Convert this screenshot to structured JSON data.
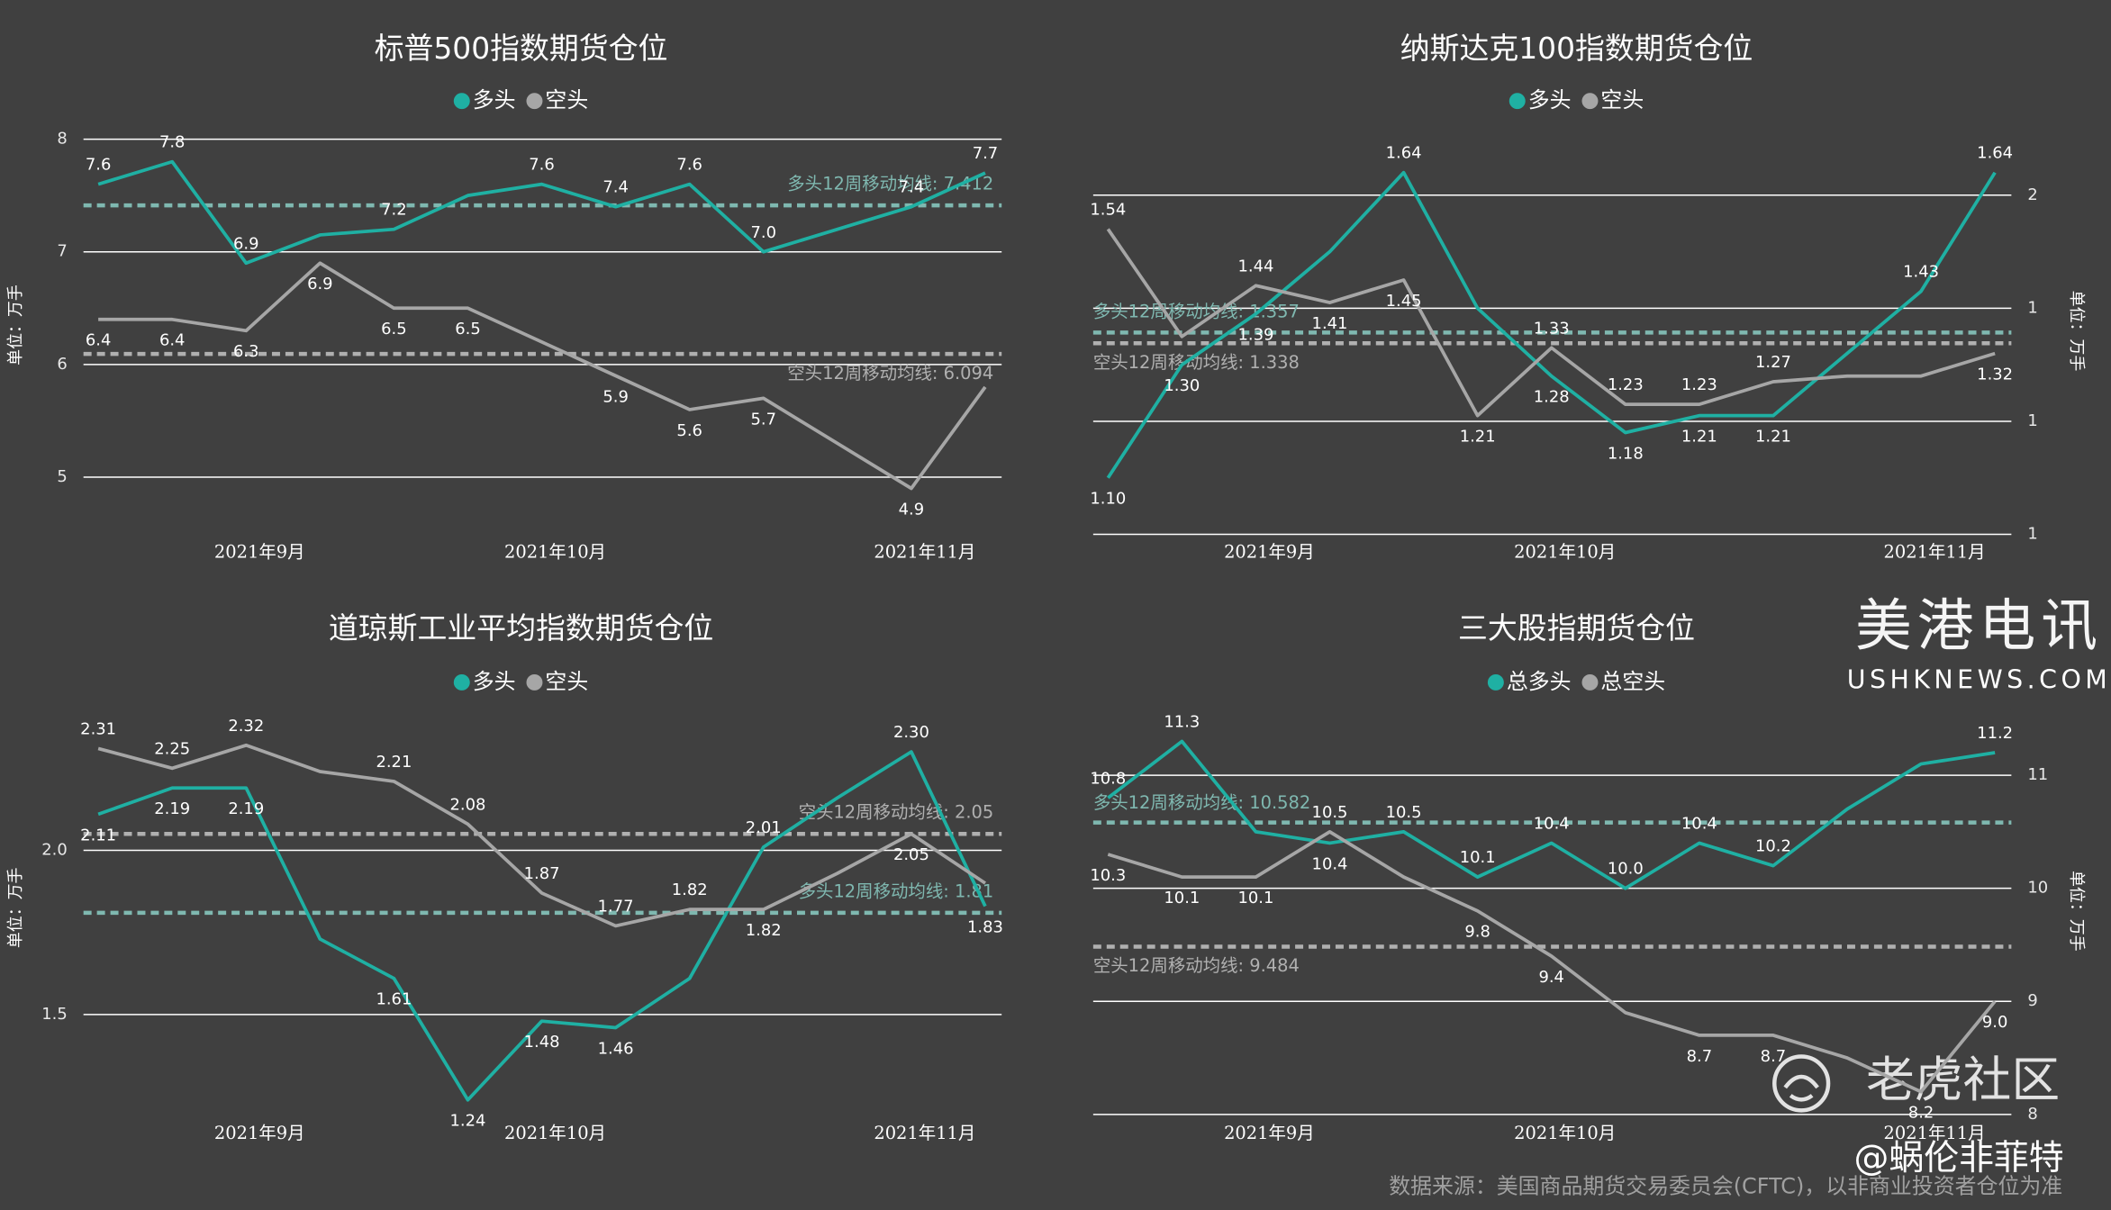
{
  "chart_data": [
    {
      "type": "line",
      "title": "标普500指数期货仓位",
      "y_axis_label": "单位：万手",
      "y_axis_side": "left",
      "grid": true,
      "legend": "top",
      "categories": [
        null,
        null,
        "2021年9月",
        null,
        null,
        null,
        "2021年10月",
        null,
        null,
        null,
        null,
        "2021年11月",
        null
      ],
      "ylim": [
        4.6,
        8.1
      ],
      "yticks": [
        5,
        6,
        7,
        8
      ],
      "series": [
        {
          "name": "多头",
          "color": "#1fb0a3",
          "values": [
            7.6,
            7.8,
            6.9,
            7.15,
            7.2,
            7.5,
            7.6,
            7.4,
            7.6,
            7.0,
            7.2,
            7.4,
            7.7
          ],
          "value_labels": [
            "7.6",
            "7.8",
            "6.9",
            null,
            "7.2",
            null,
            "7.6",
            "7.4",
            "7.6",
            "7.0",
            null,
            "7.4",
            "7.7"
          ]
        },
        {
          "name": "空头",
          "color": "#a6a6a6",
          "values": [
            6.4,
            6.4,
            6.3,
            6.9,
            6.5,
            6.5,
            6.2,
            5.9,
            5.6,
            5.7,
            5.3,
            4.9,
            5.8
          ],
          "value_labels": [
            "6.4",
            "6.4",
            "6.3",
            "6.9",
            "6.5",
            "6.5",
            null,
            "5.9",
            "5.6",
            "5.7",
            null,
            "4.9",
            null
          ]
        }
      ],
      "moving_averages": [
        {
          "label": "多头12周移动均线: 7.412",
          "value": 7.412,
          "color": "#7fb8b0"
        },
        {
          "label": "空头12周移动均线: 6.094",
          "value": 6.094,
          "color": "#b0b0b0"
        }
      ]
    },
    {
      "type": "line",
      "title": "纳斯达克100指数期货仓位",
      "y_axis_label": "单位：万手",
      "y_axis_side": "right",
      "grid": true,
      "legend": "top",
      "categories": [
        null,
        null,
        "2021年9月",
        null,
        null,
        null,
        "2021年10月",
        null,
        null,
        null,
        null,
        "2021年11月",
        null
      ],
      "ylim": [
        1.0,
        1.72
      ],
      "yticks": [
        1,
        {
          "value": 1.2,
          "label": "1"
        },
        {
          "value": 1.4,
          "label": "1"
        },
        {
          "value": 1.6,
          "label": "2"
        }
      ],
      "series": [
        {
          "name": "多头",
          "color": "#1fb0a3",
          "values": [
            1.1,
            1.3,
            1.39,
            1.5,
            1.64,
            1.4,
            1.28,
            1.18,
            1.21,
            1.21,
            1.32,
            1.43,
            1.64
          ],
          "value_labels": [
            "1.10",
            "1.30",
            "1.39",
            null,
            "1.64",
            null,
            "1.28",
            "1.18",
            "1.21",
            "1.21",
            null,
            "1.43",
            "1.64"
          ]
        },
        {
          "name": "空头",
          "color": "#a6a6a6",
          "values": [
            1.54,
            1.35,
            1.44,
            1.41,
            1.45,
            1.21,
            1.33,
            1.23,
            1.23,
            1.27,
            1.28,
            1.28,
            1.32
          ],
          "value_labels": [
            "1.54",
            null,
            "1.44",
            "1.41",
            "1.45",
            "1.21",
            "1.33",
            "1.23",
            "1.23",
            "1.27",
            null,
            null,
            "1.32"
          ]
        }
      ],
      "moving_averages": [
        {
          "label": "多头12周移动均线: 1.357",
          "value": 1.357,
          "color": "#7fb8b0"
        },
        {
          "label": "空头12周移动均线: 1.338",
          "value": 1.338,
          "color": "#b0b0b0"
        }
      ]
    },
    {
      "type": "line",
      "title": "道琼斯工业平均指数期货仓位",
      "y_axis_label": "单位：万手",
      "y_axis_side": "left",
      "grid": true,
      "legend": "top",
      "categories": [
        null,
        null,
        "2021年9月",
        null,
        null,
        null,
        "2021年10月",
        null,
        null,
        null,
        null,
        "2021年11月",
        null
      ],
      "ylim": [
        1.2,
        2.45
      ],
      "yticks": [
        1.5,
        {
          "value": 2,
          "label": "2.0"
        }
      ],
      "series": [
        {
          "name": "多头",
          "color": "#1fb0a3",
          "values": [
            2.11,
            2.19,
            2.19,
            1.73,
            1.61,
            1.24,
            1.48,
            1.46,
            1.61,
            2.01,
            2.16,
            2.3,
            1.83
          ],
          "value_labels": [
            "2.11",
            "2.19",
            "2.19",
            null,
            "1.61",
            "1.24",
            "1.48",
            "1.46",
            null,
            "2.01",
            null,
            "2.30",
            "1.83"
          ]
        },
        {
          "name": "空头",
          "color": "#a6a6a6",
          "values": [
            2.31,
            2.25,
            2.32,
            2.24,
            2.21,
            2.08,
            1.87,
            1.77,
            1.82,
            1.82,
            1.93,
            2.05,
            1.9
          ],
          "value_labels": [
            "2.31",
            "2.25",
            "2.32",
            null,
            "2.21",
            "2.08",
            "1.87",
            "1.77",
            "1.82",
            "1.82",
            null,
            "2.05",
            null
          ]
        }
      ],
      "moving_averages": [
        {
          "label": "多头12周移动均线: 1.81",
          "value": 1.81,
          "color": "#7fb8b0"
        },
        {
          "label": "空头12周移动均线: 2.05",
          "value": 2.05,
          "color": "#b0b0b0"
        }
      ]
    },
    {
      "type": "line",
      "title": "三大股指期货仓位",
      "y_axis_label": "单位：万手",
      "y_axis_side": "right",
      "grid": true,
      "legend": "top",
      "categories": [
        null,
        null,
        "2021年9月",
        null,
        null,
        null,
        "2021年10月",
        null,
        null,
        null,
        null,
        "2021年11月",
        null
      ],
      "ylim": [
        8,
        11.6
      ],
      "yticks": [
        8,
        9,
        10,
        11
      ],
      "series": [
        {
          "name": "总多头",
          "color": "#1fb0a3",
          "values": [
            10.8,
            11.3,
            10.5,
            10.4,
            10.5,
            10.1,
            10.4,
            10.0,
            10.4,
            10.2,
            10.7,
            11.1,
            11.2
          ],
          "value_labels": [
            "10.8",
            "11.3",
            null,
            "10.4",
            "10.5",
            "10.1",
            "10.4",
            "10.0",
            "10.4",
            "10.2",
            null,
            null,
            "11.2"
          ]
        },
        {
          "name": "总空头",
          "color": "#a6a6a6",
          "values": [
            10.3,
            10.1,
            10.1,
            10.5,
            10.1,
            9.8,
            9.4,
            8.9,
            8.7,
            8.7,
            8.5,
            8.2,
            9.0
          ],
          "value_labels": [
            "10.3",
            "10.1",
            "10.1",
            "10.5",
            null,
            "9.8",
            "9.4",
            null,
            "8.7",
            "8.7",
            null,
            "8.2",
            "9.0"
          ]
        }
      ],
      "moving_averages": [
        {
          "label": "多头12周移动均线: 10.582",
          "value": 10.582,
          "color": "#7fb8b0"
        },
        {
          "label": "空头12周移动均线: 9.484",
          "value": 9.484,
          "color": "#b0b0b0"
        }
      ]
    }
  ],
  "watermarks": {
    "brand": "美港电讯",
    "site": "USHKNEWS.COM",
    "community": "老虎社区",
    "author": "@蜗伦非菲特"
  },
  "source": "数据来源：美国商品期货交易委员会(CFTC)，以非商业投资者仓位为准"
}
